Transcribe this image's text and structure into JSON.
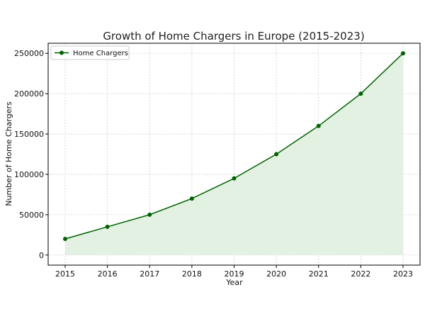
{
  "chart_data": {
    "type": "line",
    "title": "Growth of Home Chargers in Europe (2015-2023)",
    "xlabel": "Year",
    "ylabel": "Number of Home Chargers",
    "categories": [
      "2015",
      "2016",
      "2017",
      "2018",
      "2019",
      "2020",
      "2021",
      "2022",
      "2023"
    ],
    "series": [
      {
        "name": "Home Chargers",
        "values": [
          20000,
          35000,
          50000,
          70000,
          95000,
          125000,
          160000,
          200000,
          250000
        ],
        "color": "#006400",
        "fill_color": "#e3f1e3"
      }
    ],
    "ylim": [
      -12500,
      262500
    ],
    "yticks": [
      0,
      50000,
      100000,
      150000,
      200000,
      250000
    ],
    "ytick_labels": [
      "0",
      "50000",
      "100000",
      "150000",
      "200000",
      "250000"
    ],
    "grid": true,
    "legend_position": "top-left",
    "area_fill": true
  }
}
